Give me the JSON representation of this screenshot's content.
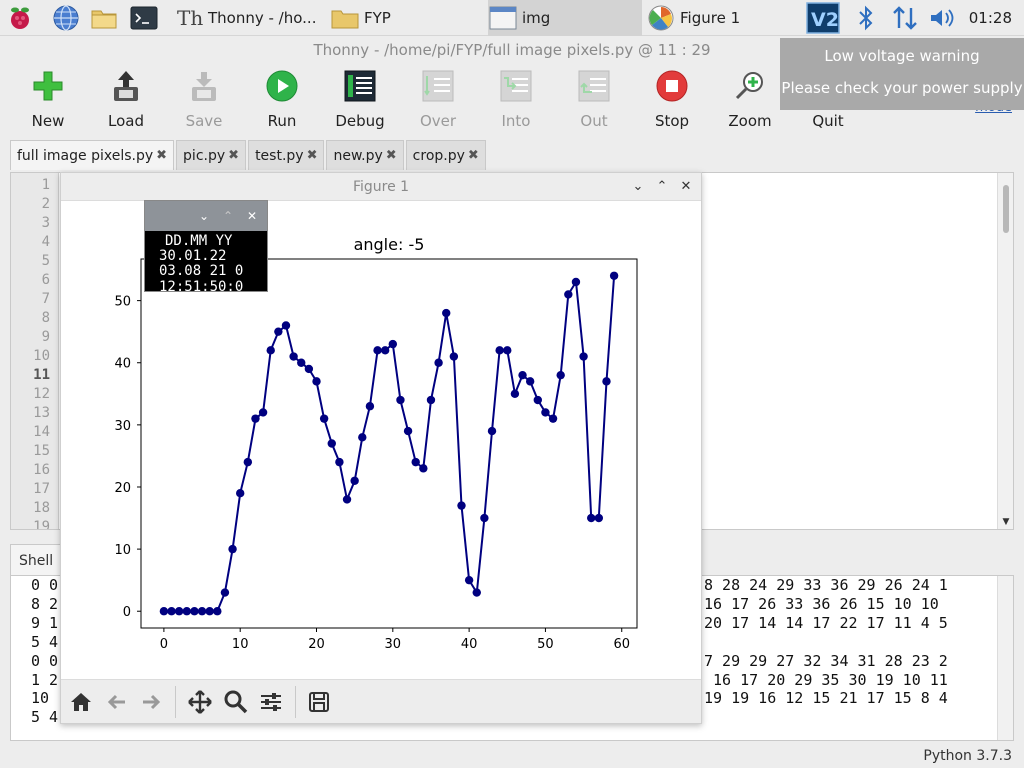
{
  "taskbar": {
    "tasks": [
      {
        "label": "Thonny  -  /ho...",
        "active": false
      },
      {
        "label": "FYP",
        "active": false
      },
      {
        "label": "img",
        "active": true
      },
      {
        "label": "Figure 1",
        "active": false
      }
    ],
    "clock": "01:28"
  },
  "thonny": {
    "title": "Thonny  -  /home/pi/FYP/full image  pixels.py  @  11 : 29",
    "toolbar": {
      "new": "New",
      "load": "Load",
      "save": "Save",
      "run": "Run",
      "debug": "Debug",
      "over": "Over",
      "into": "Into",
      "out": "Out",
      "stop": "Stop",
      "zoom": "Zoom",
      "quit": "Quit"
    },
    "mode_link": "mode",
    "tabs": [
      "full image  pixels.py",
      "pic.py",
      "test.py",
      "new.py",
      "crop.py"
    ],
    "tab_close": "✖",
    "line_numbers": [
      "1",
      "2",
      "3",
      "4",
      "5",
      "6",
      "7",
      "8",
      "9",
      "10",
      "11",
      "12",
      "13",
      "14",
      "15",
      "16",
      "17",
      "18",
      "19"
    ],
    "shell_tab": "Shell",
    "shell_left": [
      "0 0",
      "8 2",
      "9 1",
      "5 4",
      "0 0",
      "1 2",
      "10",
      "5 4"
    ],
    "shell_right": [
      "8 28 24 29 33 36 29 26 24 1",
      "16 17 26 33 36 26 15 10 10",
      "20 17 14 14 17 22 17 11 4 5",
      "",
      "7 29 29 27 32 34 31 28 23 2",
      " 16 17 20 29 35 30 19 10 11",
      "19 19 16 12 15 21 17 15 8 4",
      ""
    ],
    "python_version": "Python 3.7.3"
  },
  "notification": {
    "line1": "Low voltage warning",
    "line2": "Please check your power supply"
  },
  "figure_window": {
    "title": "Figure 1"
  },
  "img_window": {
    "lines": [
      "DD.MM YY",
      "30.01.22",
      "03.08 21 0",
      "12:51:50:0"
    ]
  },
  "chart_data": {
    "type": "line",
    "title": "angle: -5",
    "xlabel": "",
    "ylabel": "",
    "xlim": [
      -3,
      62
    ],
    "ylim": [
      -2.7,
      56.7
    ],
    "xticks": [
      0,
      10,
      20,
      30,
      40,
      50,
      60
    ],
    "yticks": [
      0,
      10,
      20,
      30,
      40,
      50
    ],
    "color": "#000080",
    "marker": "circle",
    "grid": false,
    "x": [
      0,
      1,
      2,
      3,
      4,
      5,
      6,
      7,
      8,
      9,
      10,
      11,
      12,
      13,
      14,
      15,
      16,
      17,
      18,
      19,
      20,
      21,
      22,
      23,
      24,
      25,
      26,
      27,
      28,
      29,
      30,
      31,
      32,
      33,
      34,
      35,
      36,
      37,
      38,
      39,
      40,
      41,
      42,
      43,
      44,
      45,
      46,
      47,
      48,
      49,
      50,
      51,
      52,
      53,
      54,
      55,
      56,
      57,
      58,
      59
    ],
    "values": [
      0,
      0,
      0,
      0,
      0,
      0,
      0,
      0,
      3,
      10,
      19,
      24,
      31,
      32,
      42,
      45,
      46,
      41,
      40,
      39,
      37,
      31,
      27,
      24,
      18,
      21,
      28,
      33,
      42,
      42,
      43,
      34,
      29,
      24,
      23,
      34,
      40,
      48,
      41,
      17,
      5,
      3,
      15,
      29,
      42,
      42,
      35,
      38,
      37,
      34,
      32,
      31,
      38,
      51,
      53,
      41,
      15,
      15,
      37,
      54
    ]
  }
}
